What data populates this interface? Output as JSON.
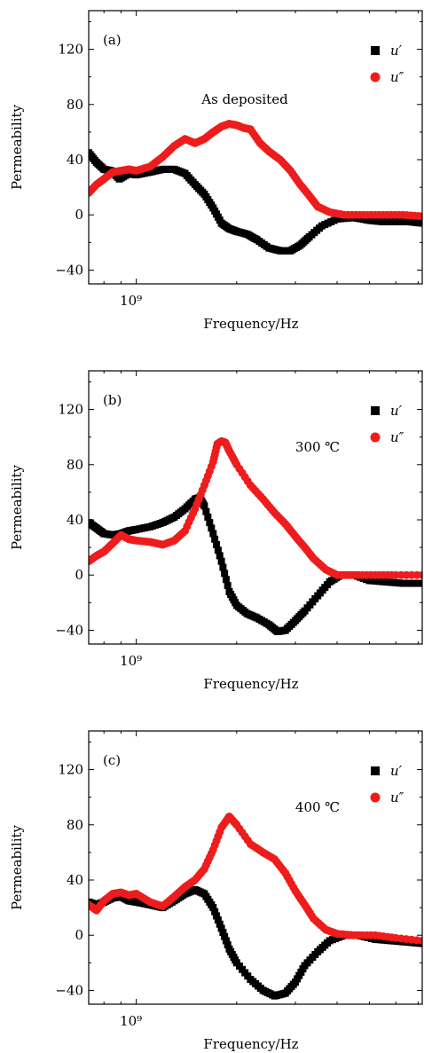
{
  "chart_data": [
    {
      "type": "scatter",
      "panel_label": "(a)",
      "annotation": "As deposited",
      "xlabel": "Frequency/Hz",
      "ylabel": "Permeability",
      "x_scale": "log",
      "x_tick_label": "10⁹",
      "xlim": [
        720000000.0,
        7200000000.0
      ],
      "ylim": [
        -50,
        148
      ],
      "yticks": [
        -40,
        0,
        40,
        80,
        120
      ],
      "ytick_labels": [
        "−40",
        "0",
        "40",
        "80",
        "120"
      ],
      "legend_position": "top-right",
      "series": [
        {
          "name": "u′",
          "color": "#000000",
          "marker": "square",
          "points": [
            [
              720000000.0,
              45
            ],
            [
              760000000.0,
              38
            ],
            [
              800000000.0,
              33
            ],
            [
              840000000.0,
              32
            ],
            [
              890000000.0,
              26
            ],
            [
              950000000.0,
              30
            ],
            [
              1000000000.0,
              29
            ],
            [
              1100000000.0,
              31
            ],
            [
              1200000000.0,
              33
            ],
            [
              1300000000.0,
              33
            ],
            [
              1400000000.0,
              30
            ],
            [
              1500000000.0,
              22
            ],
            [
              1600000000.0,
              15
            ],
            [
              1700000000.0,
              5
            ],
            [
              1800000000.0,
              -6
            ],
            [
              1900000000.0,
              -10
            ],
            [
              2000000000.0,
              -12
            ],
            [
              2150000000.0,
              -14
            ],
            [
              2300000000.0,
              -18
            ],
            [
              2500000000.0,
              -24
            ],
            [
              2700000000.0,
              -26
            ],
            [
              2900000000.0,
              -26
            ],
            [
              3100000000.0,
              -22
            ],
            [
              3300000000.0,
              -16
            ],
            [
              3600000000.0,
              -8
            ],
            [
              4000000000.0,
              -3
            ],
            [
              4500000000.0,
              -2
            ],
            [
              5000000000.0,
              -4
            ],
            [
              5500000000.0,
              -5
            ],
            [
              6000000000.0,
              -5
            ],
            [
              6600000000.0,
              -5
            ],
            [
              7200000000.0,
              -6
            ]
          ]
        },
        {
          "name": "u″",
          "color": "#ee1c1c",
          "marker": "circle",
          "points": [
            [
              720000000.0,
              16
            ],
            [
              760000000.0,
              22
            ],
            [
              800000000.0,
              26
            ],
            [
              850000000.0,
              31
            ],
            [
              900000000.0,
              32
            ],
            [
              950000000.0,
              33
            ],
            [
              1000000000.0,
              32
            ],
            [
              1100000000.0,
              35
            ],
            [
              1200000000.0,
              42
            ],
            [
              1300000000.0,
              50
            ],
            [
              1400000000.0,
              55
            ],
            [
              1500000000.0,
              52
            ],
            [
              1600000000.0,
              55
            ],
            [
              1700000000.0,
              60
            ],
            [
              1800000000.0,
              64
            ],
            [
              1900000000.0,
              66
            ],
            [
              2000000000.0,
              65
            ],
            [
              2100000000.0,
              63
            ],
            [
              2200000000.0,
              62
            ],
            [
              2350000000.0,
              52
            ],
            [
              2500000000.0,
              46
            ],
            [
              2700000000.0,
              40
            ],
            [
              2900000000.0,
              32
            ],
            [
              3100000000.0,
              22
            ],
            [
              3300000000.0,
              14
            ],
            [
              3500000000.0,
              6
            ],
            [
              3800000000.0,
              2
            ],
            [
              4200000000.0,
              0
            ],
            [
              4800000000.0,
              0
            ],
            [
              5500000000.0,
              0
            ],
            [
              6300000000.0,
              0
            ],
            [
              7200000000.0,
              -1
            ]
          ]
        }
      ]
    },
    {
      "type": "scatter",
      "panel_label": "(b)",
      "annotation": "300 ℃",
      "xlabel": "Frequency/Hz",
      "ylabel": "Permeability",
      "x_scale": "log",
      "x_tick_label": "10⁹",
      "xlim": [
        720000000.0,
        7200000000.0
      ],
      "ylim": [
        -50,
        148
      ],
      "yticks": [
        -40,
        0,
        40,
        80,
        120
      ],
      "ytick_labels": [
        "−40",
        "0",
        "40",
        "80",
        "120"
      ],
      "legend_position": "top-right",
      "series": [
        {
          "name": "u′",
          "color": "#000000",
          "marker": "square",
          "points": [
            [
              720000000.0,
              38
            ],
            [
              760000000.0,
              34
            ],
            [
              800000000.0,
              30
            ],
            [
              850000000.0,
              29
            ],
            [
              900000000.0,
              30
            ],
            [
              950000000.0,
              32
            ],
            [
              1000000000.0,
              33
            ],
            [
              1100000000.0,
              35
            ],
            [
              1200000000.0,
              38
            ],
            [
              1300000000.0,
              42
            ],
            [
              1400000000.0,
              48
            ],
            [
              1500000000.0,
              55
            ],
            [
              1550000000.0,
              56
            ],
            [
              1600000000.0,
              50
            ],
            [
              1700000000.0,
              30
            ],
            [
              1800000000.0,
              10
            ],
            [
              1900000000.0,
              -12
            ],
            [
              2000000000.0,
              -22
            ],
            [
              2150000000.0,
              -28
            ],
            [
              2300000000.0,
              -31
            ],
            [
              2500000000.0,
              -36
            ],
            [
              2650000000.0,
              -41
            ],
            [
              2800000000.0,
              -40
            ],
            [
              3000000000.0,
              -33
            ],
            [
              3200000000.0,
              -26
            ],
            [
              3500000000.0,
              -15
            ],
            [
              3800000000.0,
              -5
            ],
            [
              4100000000.0,
              0
            ],
            [
              4500000000.0,
              0
            ],
            [
              5000000000.0,
              -4
            ],
            [
              5600000000.0,
              -5
            ],
            [
              6300000000.0,
              -6
            ],
            [
              7200000000.0,
              -6
            ]
          ]
        },
        {
          "name": "u″",
          "color": "#ee1c1c",
          "marker": "circle",
          "points": [
            [
              720000000.0,
              10
            ],
            [
              760000000.0,
              14
            ],
            [
              800000000.0,
              17
            ],
            [
              850000000.0,
              23
            ],
            [
              900000000.0,
              29
            ],
            [
              950000000.0,
              26
            ],
            [
              1000000000.0,
              25
            ],
            [
              1100000000.0,
              24
            ],
            [
              1200000000.0,
              22
            ],
            [
              1300000000.0,
              25
            ],
            [
              1400000000.0,
              32
            ],
            [
              1500000000.0,
              48
            ],
            [
              1600000000.0,
              65
            ],
            [
              1700000000.0,
              82
            ],
            [
              1750000000.0,
              95
            ],
            [
              1800000000.0,
              97
            ],
            [
              1850000000.0,
              96
            ],
            [
              1900000000.0,
              90
            ],
            [
              2000000000.0,
              80
            ],
            [
              2200000000.0,
              65
            ],
            [
              2400000000.0,
              55
            ],
            [
              2600000000.0,
              45
            ],
            [
              2800000000.0,
              37
            ],
            [
              3000000000.0,
              28
            ],
            [
              3200000000.0,
              20
            ],
            [
              3400000000.0,
              12
            ],
            [
              3700000000.0,
              4
            ],
            [
              4000000000.0,
              0
            ],
            [
              4500000000.0,
              0
            ],
            [
              5200000000.0,
              0
            ],
            [
              6000000000.0,
              0
            ],
            [
              7200000000.0,
              0
            ]
          ]
        }
      ]
    },
    {
      "type": "scatter",
      "panel_label": "(c)",
      "annotation": "400 ℃",
      "xlabel": "Frequency/Hz",
      "ylabel": "Permeability",
      "x_scale": "log",
      "x_tick_label": "10⁹",
      "xlim": [
        720000000.0,
        7200000000.0
      ],
      "ylim": [
        -50,
        148
      ],
      "yticks": [
        -40,
        0,
        40,
        80,
        120
      ],
      "ytick_labels": [
        "−40",
        "0",
        "40",
        "80",
        "120"
      ],
      "legend_position": "top-right",
      "series": [
        {
          "name": "u′",
          "color": "#000000",
          "marker": "square",
          "points": [
            [
              720000000.0,
              24
            ],
            [
              760000000.0,
              22
            ],
            [
              800000000.0,
              24
            ],
            [
              850000000.0,
              27
            ],
            [
              900000000.0,
              28
            ],
            [
              950000000.0,
              25
            ],
            [
              1000000000.0,
              24
            ],
            [
              1100000000.0,
              22
            ],
            [
              1200000000.0,
              20
            ],
            [
              1300000000.0,
              25
            ],
            [
              1400000000.0,
              30
            ],
            [
              1500000000.0,
              33
            ],
            [
              1600000000.0,
              30
            ],
            [
              1700000000.0,
              20
            ],
            [
              1800000000.0,
              5
            ],
            [
              1900000000.0,
              -10
            ],
            [
              2000000000.0,
              -20
            ],
            [
              2200000000.0,
              -32
            ],
            [
              2400000000.0,
              -40
            ],
            [
              2600000000.0,
              -44
            ],
            [
              2800000000.0,
              -42
            ],
            [
              3000000000.0,
              -34
            ],
            [
              3200000000.0,
              -22
            ],
            [
              3500000000.0,
              -12
            ],
            [
              3800000000.0,
              -4
            ],
            [
              4200000000.0,
              0
            ],
            [
              4600000000.0,
              0
            ],
            [
              5200000000.0,
              -3
            ],
            [
              5800000000.0,
              -4
            ],
            [
              6500000000.0,
              -5
            ],
            [
              7200000000.0,
              -6
            ]
          ]
        },
        {
          "name": "u″",
          "color": "#ee1c1c",
          "marker": "circle",
          "points": [
            [
              720000000.0,
              22
            ],
            [
              760000000.0,
              18
            ],
            [
              800000000.0,
              25
            ],
            [
              850000000.0,
              30
            ],
            [
              900000000.0,
              31
            ],
            [
              950000000.0,
              29
            ],
            [
              1000000000.0,
              30
            ],
            [
              1100000000.0,
              24
            ],
            [
              1200000000.0,
              21
            ],
            [
              1300000000.0,
              28
            ],
            [
              1400000000.0,
              35
            ],
            [
              1500000000.0,
              40
            ],
            [
              1600000000.0,
              48
            ],
            [
              1700000000.0,
              62
            ],
            [
              1800000000.0,
              78
            ],
            [
              1900000000.0,
              86
            ],
            [
              2000000000.0,
              80
            ],
            [
              2200000000.0,
              66
            ],
            [
              2400000000.0,
              60
            ],
            [
              2600000000.0,
              55
            ],
            [
              2800000000.0,
              45
            ],
            [
              3000000000.0,
              32
            ],
            [
              3200000000.0,
              22
            ],
            [
              3400000000.0,
              12
            ],
            [
              3700000000.0,
              4
            ],
            [
              4000000000.0,
              1
            ],
            [
              4500000000.0,
              0
            ],
            [
              5200000000.0,
              0
            ],
            [
              6000000000.0,
              -2
            ],
            [
              7200000000.0,
              -4
            ]
          ]
        }
      ]
    }
  ]
}
